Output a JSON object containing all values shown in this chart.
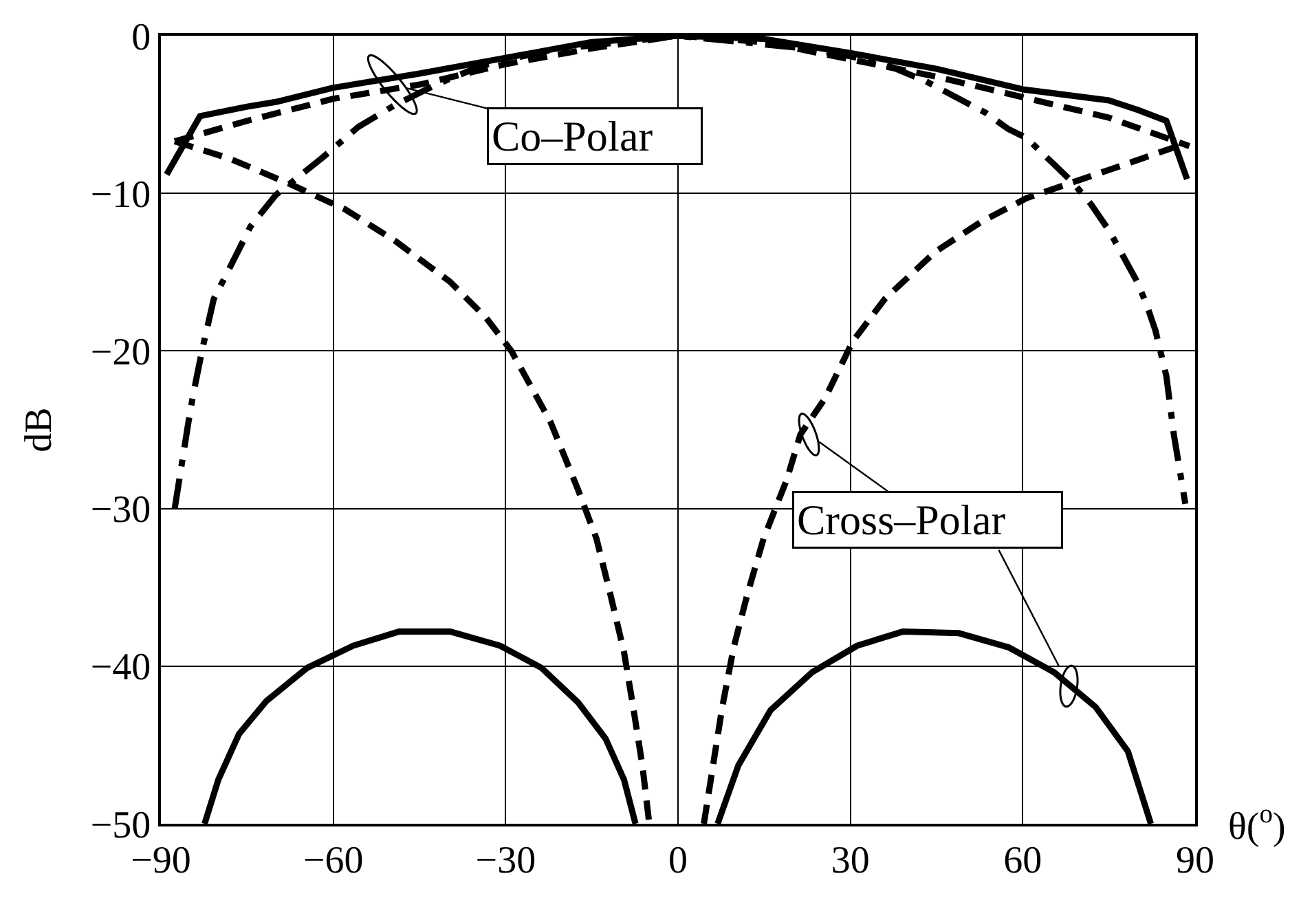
{
  "chart_data": {
    "type": "line",
    "xlabel": "θ($^{o}$)",
    "ylabel": "dB",
    "xlim": [
      -90,
      90
    ],
    "xticks": [
      -90,
      -60,
      -30,
      0,
      30,
      60,
      90
    ],
    "ylim": [
      -50,
      0
    ],
    "yticks": [
      -50,
      -40,
      -30,
      -20,
      -10,
      0
    ],
    "grid": true,
    "series": [
      {
        "color": "#000000",
        "line_style": "solid",
        "x": [
          -89,
          -83.2,
          -75,
          -70,
          -60,
          -45,
          -30,
          -15,
          0,
          15,
          30,
          45,
          60,
          75,
          80,
          85,
          88.6
        ],
        "values": [
          -8.8,
          -5.1,
          -4.5,
          -4.2,
          -3.3,
          -2.4,
          -1.4,
          -0.4,
          0,
          -0.2,
          -1.1,
          -2.1,
          -3.4,
          -4.1,
          -4.7,
          -5.4,
          -9.1
        ]
      },
      {
        "color": "#000000",
        "line_style": "dashed",
        "x": [
          -87.6,
          -75,
          -60,
          -45,
          -30,
          -15,
          0,
          15,
          30,
          45,
          60,
          75,
          89
        ],
        "values": [
          -6.7,
          -5.4,
          -4.0,
          -3.1,
          -1.8,
          -0.8,
          0,
          -0.4,
          -1.5,
          -2.6,
          -3.9,
          -5.2,
          -7.0
        ]
      },
      {
        "color": "#000000",
        "line_style": "dashdot",
        "x": [
          -87.6,
          -85.2,
          -84.4,
          -82.8,
          -80.8,
          -78.4,
          -74.4,
          -70,
          -67.6,
          -62.1,
          -55.7,
          -49.3,
          -42.1,
          -34.2,
          -22.2,
          0,
          22,
          30,
          36,
          43.2,
          53.6,
          57.4,
          60.7,
          68.7,
          71.9,
          75.1,
          79.9,
          81.5,
          83.1,
          85,
          86.3,
          88.3
        ],
        "values": [
          -30,
          -24.5,
          -22.8,
          -19.9,
          -16.7,
          -15,
          -12.1,
          -10.1,
          -9.4,
          -7.8,
          -5.8,
          -4.4,
          -3.1,
          -1.9,
          -0.9,
          0,
          -0.8,
          -1.3,
          -1.8,
          -2.9,
          -4.9,
          -5.9,
          -6.5,
          -9.3,
          -10.7,
          -12.4,
          -15.6,
          -17,
          -18.7,
          -21.6,
          -25.3,
          -29.7
        ]
      },
      {
        "color": "#000000",
        "line_style": "dashed",
        "x": [
          -87.6,
          -78,
          -67.6,
          -58,
          -49.3,
          -39.7,
          -33.4,
          -29,
          -22.2,
          -17.4,
          -14.2,
          -11.8,
          -9.4,
          -7.8,
          -6.2,
          -5.0,
          0,
          4.5,
          6.1,
          7.7,
          9.7,
          12.1,
          14.9,
          18.9,
          21.3,
          25.6,
          30.4,
          36,
          44.8,
          52.8,
          60.7,
          68.7,
          77.5,
          86.2
        ],
        "values": [
          -6.7,
          -7.8,
          -9.4,
          -11,
          -13,
          -15.6,
          -17.9,
          -20,
          -24.5,
          -28.8,
          -31.9,
          -35.4,
          -39.1,
          -42.6,
          -46.3,
          -50,
          null,
          -50,
          -46.3,
          -42.6,
          -38.8,
          -35.4,
          -31.9,
          -28.2,
          -25.3,
          -23,
          -19.4,
          -16.7,
          -13.7,
          -11.8,
          -10.3,
          -9.3,
          -8.2,
          -7.1
        ]
      },
      {
        "color": "#000000",
        "line_style": "solid",
        "x": [
          -82.4,
          -80,
          -76.4,
          -71.6,
          -64.5,
          -56.5,
          -48.5,
          -39.7,
          -31,
          -23.8,
          -17.4,
          -12.6,
          -9.4,
          -7.4,
          0,
          6.9,
          10.5,
          16.1,
          23.3,
          31.2,
          39.2,
          48.8,
          57.5,
          65.5,
          72.7,
          78.3,
          82.3
        ],
        "values": [
          -50,
          -47.2,
          -44.3,
          -42.2,
          -40.1,
          -38.7,
          -37.8,
          -37.8,
          -38.7,
          -40.1,
          -42.3,
          -44.6,
          -47.2,
          -50,
          null,
          -50,
          -46.3,
          -42.8,
          -40.4,
          -38.7,
          -37.8,
          -37.9,
          -38.8,
          -40.4,
          -42.6,
          -45.4,
          -50
        ]
      }
    ],
    "annotations": [
      {
        "text": "Co–Polar",
        "x": -49.7,
        "y": -3.1
      },
      {
        "text": "Cross–Polar",
        "x": 22.8,
        "y": -25.3
      }
    ]
  }
}
